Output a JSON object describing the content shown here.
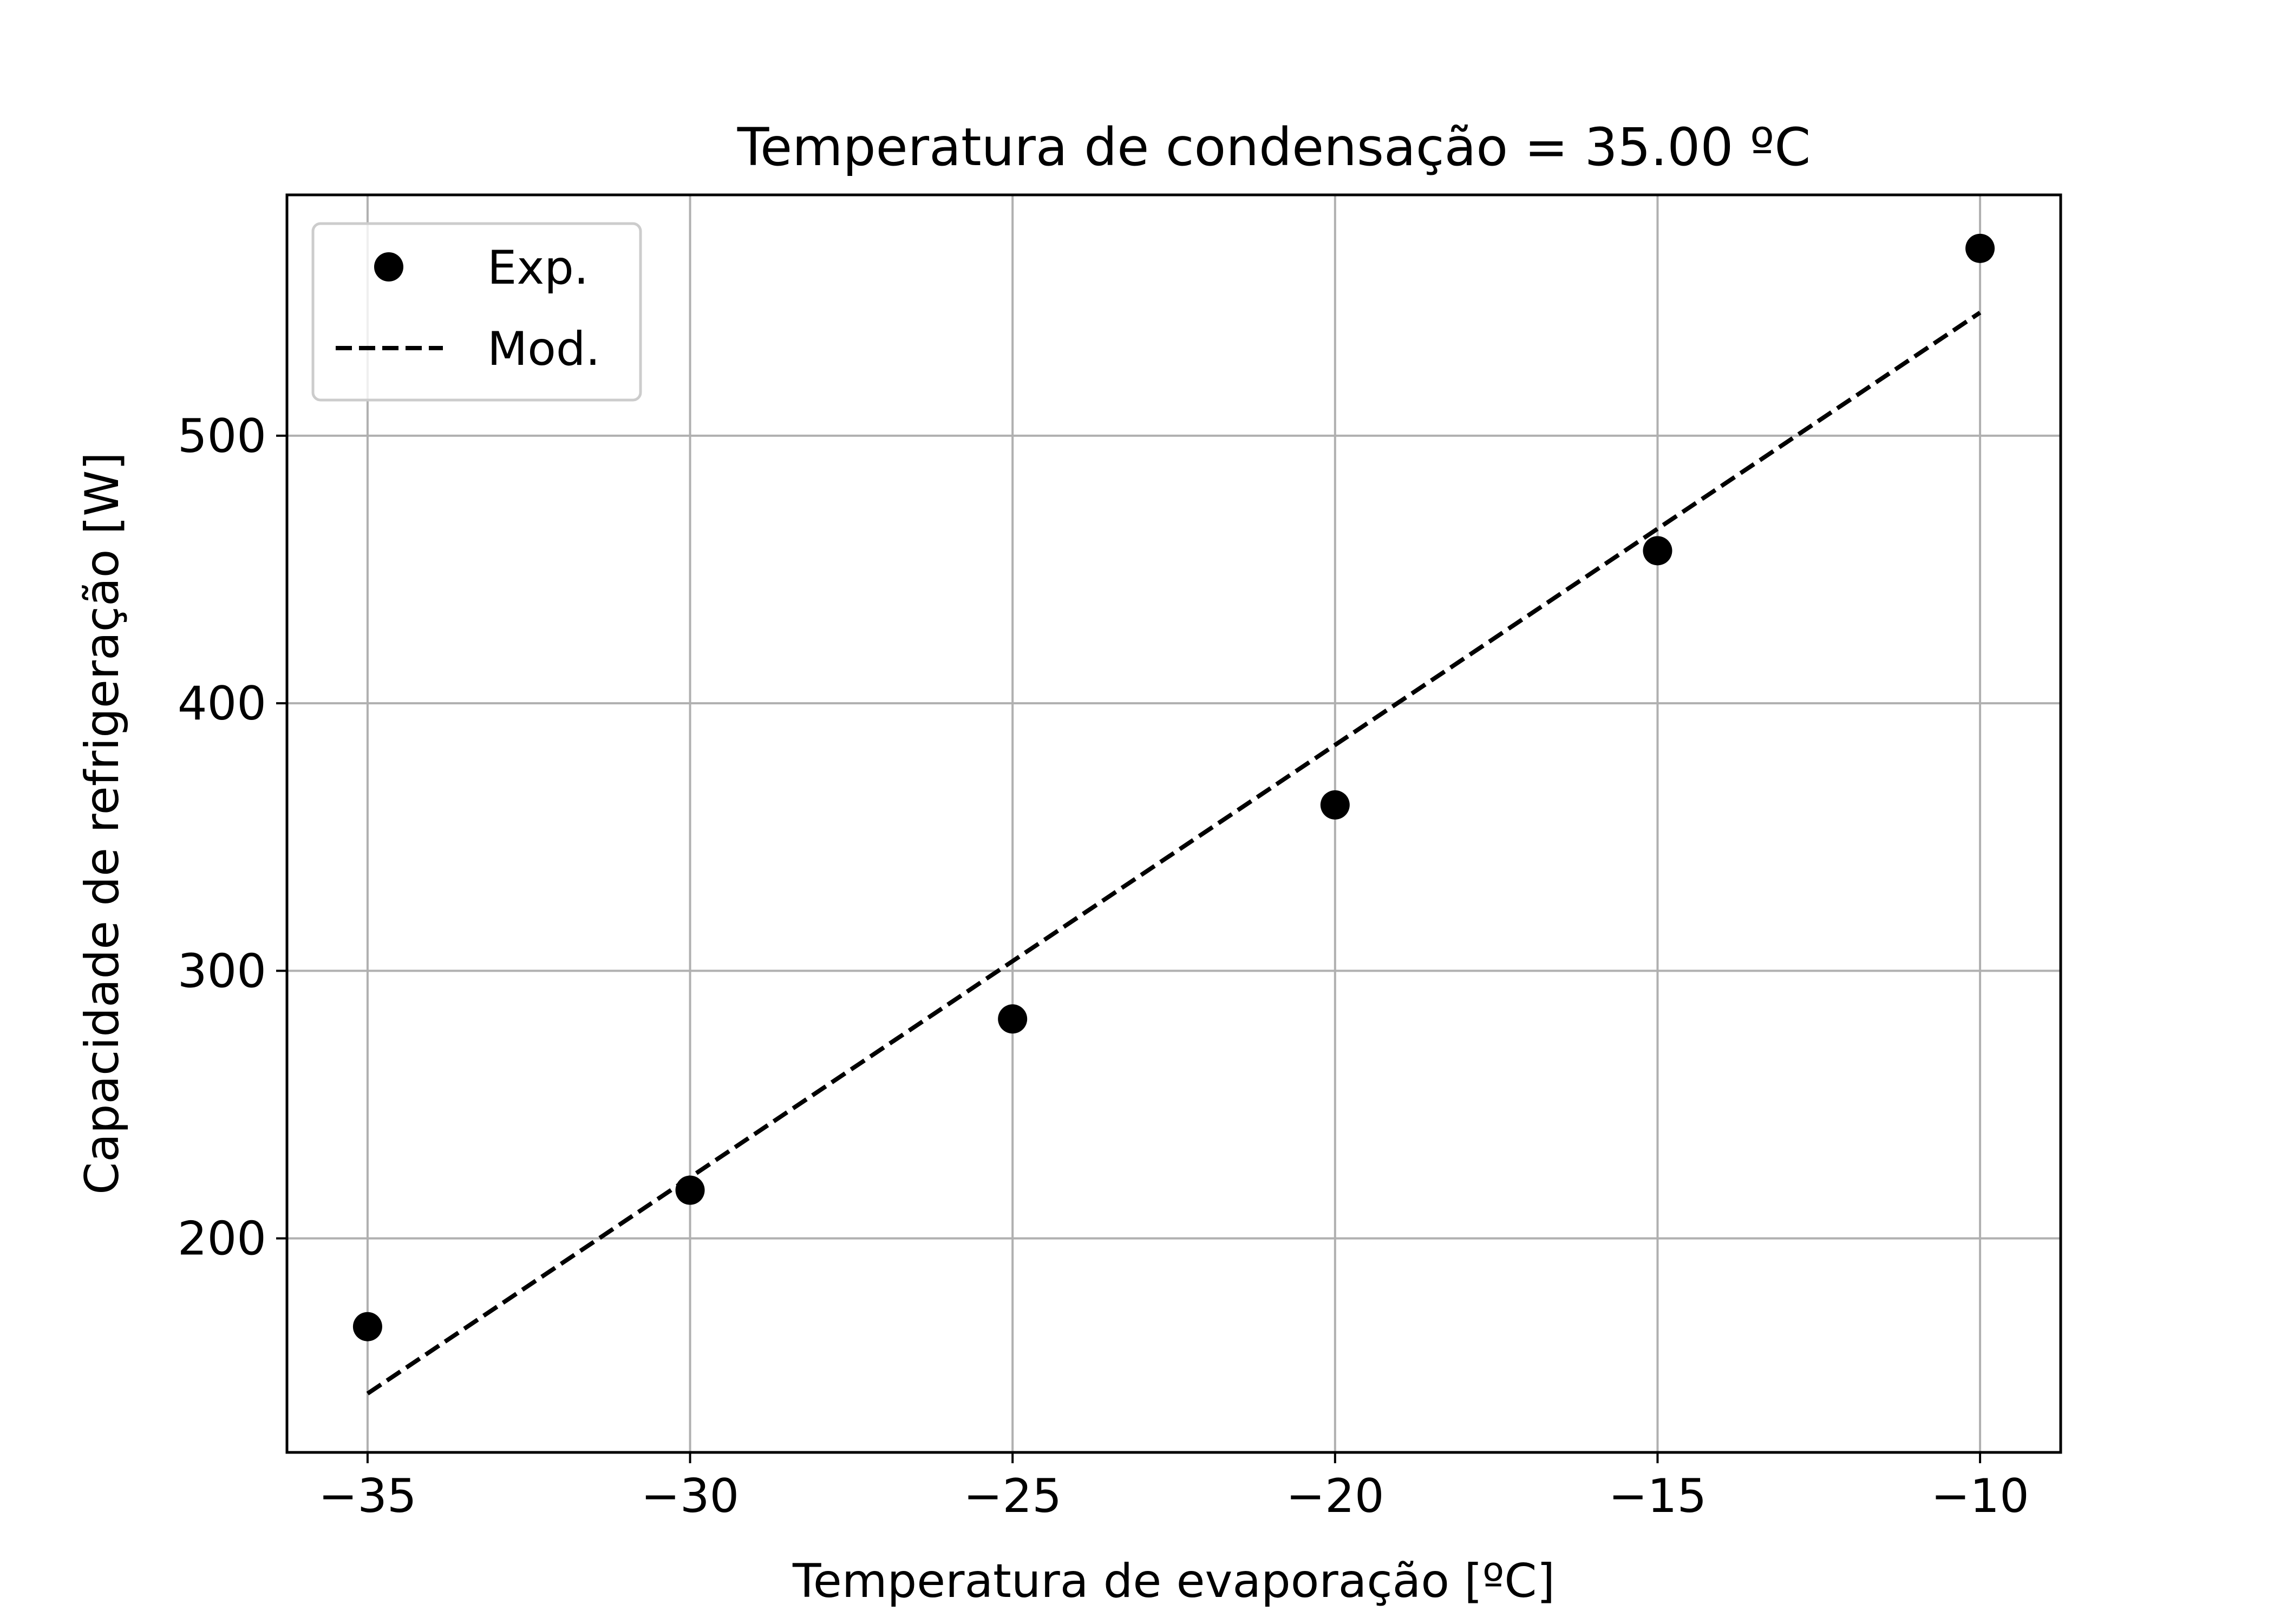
{
  "chart_data": {
    "type": "scatter",
    "title": "Temperatura de condensação = 35.00 ºC",
    "xlabel": "Temperatura de evaporação [ºC]",
    "ylabel": "Capacidade de refrigeração [W]",
    "xlim": [
      -36.25,
      -8.75
    ],
    "ylim": [
      120,
      590
    ],
    "xticks": [
      -35,
      -30,
      -25,
      -20,
      -15,
      -10
    ],
    "xtick_labels": [
      "−35",
      "−30",
      "−25",
      "−20",
      "−15",
      "−10"
    ],
    "yticks": [
      200,
      300,
      400,
      500
    ],
    "ytick_labels": [
      "200",
      "300",
      "400",
      "500"
    ],
    "grid": true,
    "legend_position": "top-left",
    "series": [
      {
        "name": "Exp.",
        "style": "markers",
        "color": "#000000",
        "x": [
          -35,
          -30,
          -25,
          -20,
          -15,
          -10
        ],
        "y": [
          167,
          218,
          282,
          362,
          457,
          570
        ]
      },
      {
        "name": "Mod.",
        "style": "dashed-line",
        "color": "#000000",
        "x": [
          -35,
          -10
        ],
        "y": [
          142,
          546
        ]
      }
    ]
  }
}
